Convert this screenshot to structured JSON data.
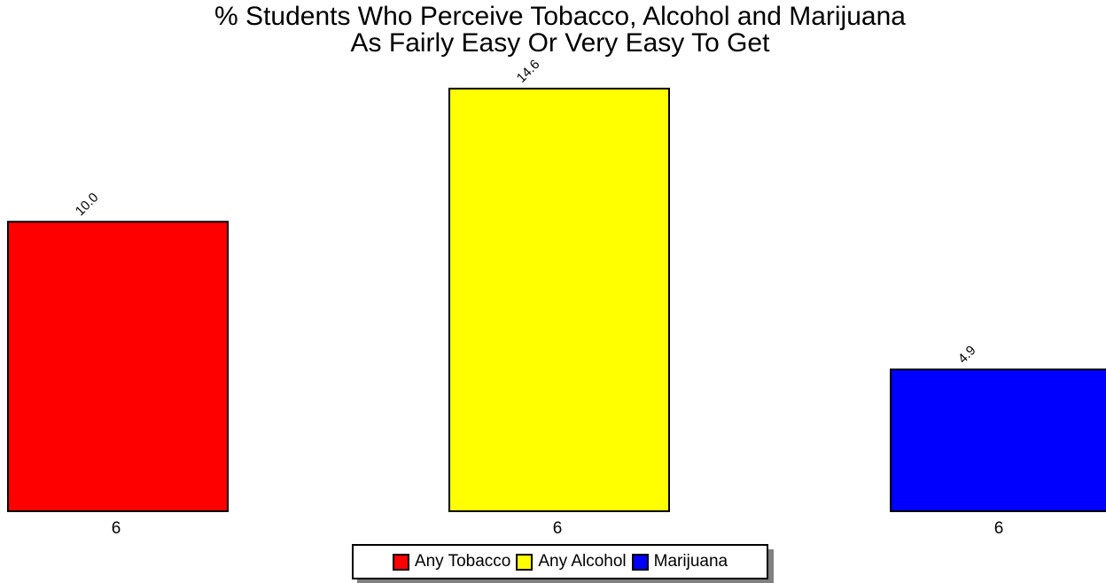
{
  "chart_data": {
    "type": "bar",
    "title": "% Students Who Perceive Tobacco, Alcohol and Marijuana",
    "subtitle": "As Fairly Easy Or Very Easy To Get",
    "categories": [
      "6"
    ],
    "series": [
      {
        "name": "Any Tobacco",
        "values": [
          10.0
        ],
        "color": "#ff0000",
        "label": "10.0"
      },
      {
        "name": "Any Alcohol",
        "values": [
          14.6
        ],
        "color": "#ffff00",
        "label": "14.6"
      },
      {
        "name": "Marijuana",
        "values": [
          4.9
        ],
        "color": "#0000ff",
        "label": "4.9"
      }
    ],
    "x_tick_labels": [
      "6",
      "6",
      "6"
    ],
    "ylim": [
      0,
      14.6
    ],
    "grid": false,
    "legend_position": "bottom"
  }
}
